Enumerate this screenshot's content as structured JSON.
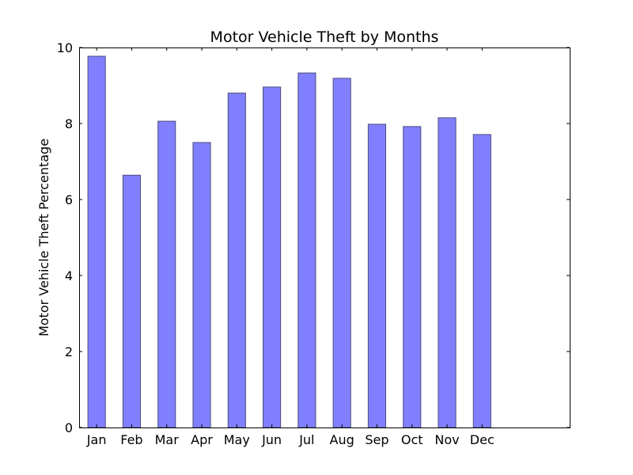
{
  "chart_data": {
    "type": "bar",
    "title": "Motor Vehicle Theft by Months",
    "xlabel": "",
    "ylabel": "Motor Vehicle Theft Percentage",
    "categories": [
      "Jan",
      "Feb",
      "Mar",
      "Apr",
      "May",
      "Jun",
      "Jul",
      "Aug",
      "Sep",
      "Oct",
      "Nov",
      "Dec"
    ],
    "values": [
      9.77,
      6.64,
      8.06,
      7.5,
      8.8,
      8.96,
      9.33,
      9.19,
      7.98,
      7.92,
      8.15,
      7.71
    ],
    "ylim": [
      0,
      10
    ],
    "yticks": [
      0,
      2,
      4,
      6,
      8,
      10
    ],
    "grid": false,
    "bar_color": "#8080ff",
    "bar_edge_color": "#4d4d80"
  }
}
